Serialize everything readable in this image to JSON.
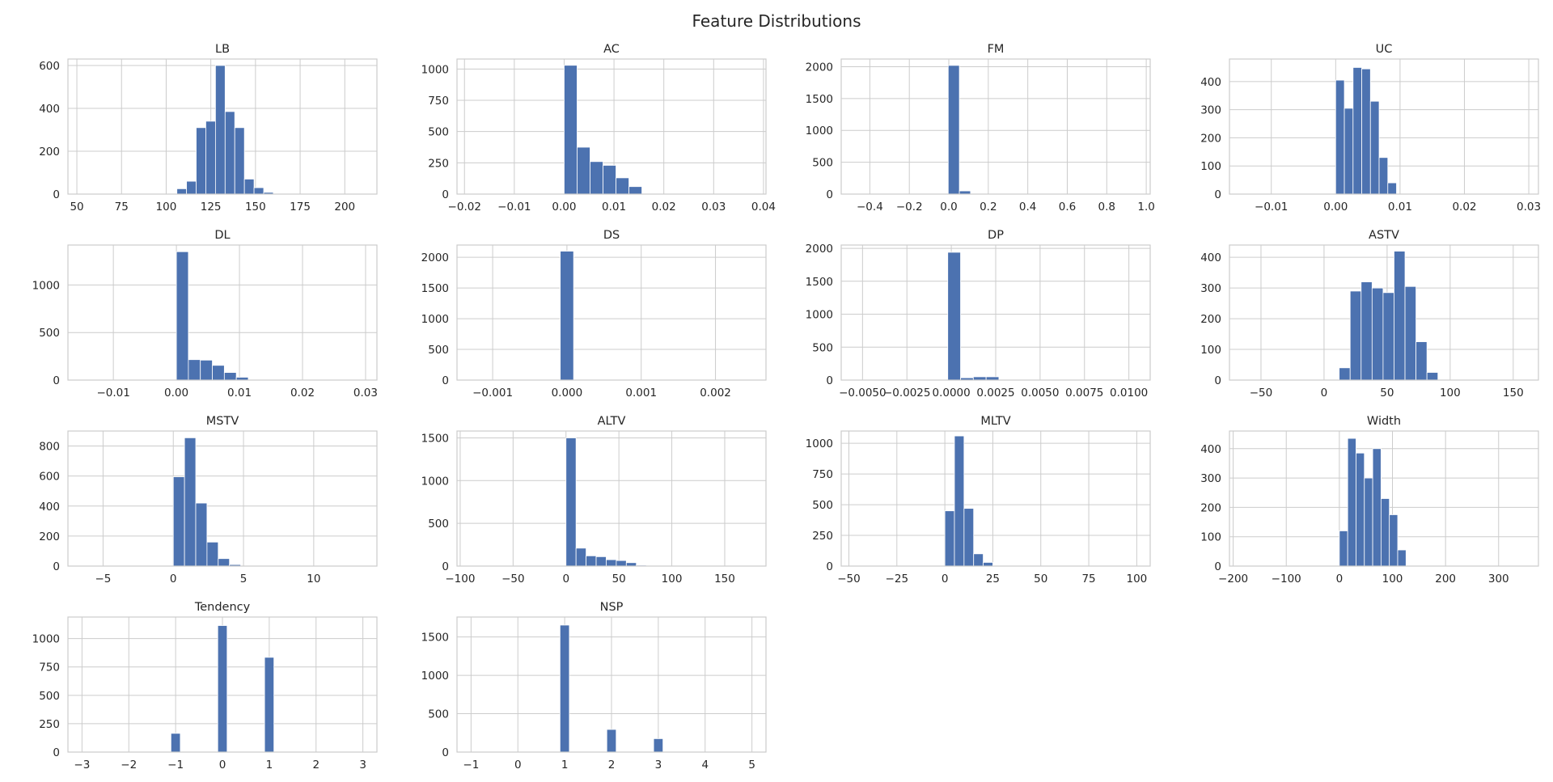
{
  "figure": {
    "title": "Feature Distributions"
  },
  "style": {
    "bar_color": "#4c72b0",
    "grid_color": "#cccccc",
    "background": "#ffffff"
  },
  "chart_data": [
    {
      "type": "bar",
      "title": "LB",
      "xlim": [
        45,
        218
      ],
      "ylim": [
        0,
        630
      ],
      "grid": true,
      "xticks": [
        50,
        75,
        100,
        125,
        150,
        175,
        200
      ],
      "yticks": [
        0,
        200,
        400,
        600
      ],
      "bin_edges": [
        106,
        111.4,
        116.8,
        122.2,
        127.6,
        133,
        138.4,
        143.8,
        149.2,
        154.6,
        160
      ],
      "values": [
        25,
        60,
        310,
        340,
        600,
        385,
        310,
        70,
        30,
        8
      ]
    },
    {
      "type": "bar",
      "title": "AC",
      "xlim": [
        -0.0215,
        0.0405
      ],
      "ylim": [
        0,
        1080
      ],
      "grid": true,
      "xticks": [
        -0.02,
        -0.01,
        0.0,
        0.01,
        0.02,
        0.03,
        0.04
      ],
      "xtick_labels": [
        "−0.02",
        "−0.01",
        "0.00",
        "0.01",
        "0.02",
        "0.03",
        "0.04"
      ],
      "yticks": [
        0,
        250,
        500,
        750,
        1000
      ],
      "bin_edges": [
        0,
        0.0026,
        0.0052,
        0.0078,
        0.0104,
        0.013,
        0.0156
      ],
      "values": [
        1030,
        375,
        260,
        230,
        130,
        60
      ]
    },
    {
      "type": "bar",
      "title": "FM",
      "xlim": [
        -0.545,
        1.02
      ],
      "ylim": [
        0,
        2120
      ],
      "grid": true,
      "xticks": [
        -0.4,
        -0.2,
        0.0,
        0.2,
        0.4,
        0.6,
        0.8,
        1.0
      ],
      "xtick_labels": [
        "−0.4",
        "−0.2",
        "0.0",
        "0.2",
        "0.4",
        "0.6",
        "0.8",
        "1.0"
      ],
      "yticks": [
        0,
        500,
        1000,
        1500,
        2000
      ],
      "bin_edges": [
        -0.003,
        0.0535,
        0.11
      ],
      "values": [
        2020,
        50
      ]
    },
    {
      "type": "bar",
      "title": "UC",
      "xlim": [
        -0.0165,
        0.0315
      ],
      "ylim": [
        0,
        480
      ],
      "grid": true,
      "xticks": [
        -0.01,
        0.0,
        0.01,
        0.02,
        0.03
      ],
      "xtick_labels": [
        "−0.01",
        "0.00",
        "0.01",
        "0.02",
        "0.03"
      ],
      "yticks": [
        0,
        100,
        200,
        300,
        400
      ],
      "bin_edges": [
        0,
        0.00135,
        0.0027,
        0.00405,
        0.0054,
        0.00675,
        0.0081,
        0.00945,
        0.0108
      ],
      "values": [
        405,
        305,
        450,
        445,
        330,
        130,
        40,
        0
      ]
    },
    {
      "type": "bar",
      "title": "DL",
      "xlim": [
        -0.0172,
        0.0318
      ],
      "ylim": [
        0,
        1420
      ],
      "grid": true,
      "xticks": [
        -0.01,
        0.0,
        0.01,
        0.02,
        0.03
      ],
      "xtick_labels": [
        "−0.01",
        "0.00",
        "0.01",
        "0.02",
        "0.03"
      ],
      "yticks": [
        0,
        500,
        1000
      ],
      "bin_edges": [
        0,
        0.0019,
        0.0038,
        0.0057,
        0.0076,
        0.0095,
        0.0114,
        0.0133
      ],
      "values": [
        1350,
        215,
        210,
        155,
        80,
        30,
        5
      ]
    },
    {
      "type": "bar",
      "title": "DS",
      "xlim": [
        -0.00148,
        0.00268
      ],
      "ylim": [
        0,
        2200
      ],
      "grid": true,
      "xticks": [
        -0.001,
        0.0,
        0.001,
        0.002
      ],
      "xtick_labels": [
        "−0.001",
        "0.000",
        "0.001",
        "0.002"
      ],
      "yticks": [
        0,
        500,
        1000,
        1500,
        2000
      ],
      "bin_edges": [
        -9e-05,
        9e-05
      ],
      "values": [
        2100
      ]
    },
    {
      "type": "bar",
      "title": "DP",
      "xlim": [
        -0.0062,
        0.0112
      ],
      "ylim": [
        0,
        2050
      ],
      "grid": true,
      "xticks": [
        -0.005,
        -0.0025,
        0.0,
        0.0025,
        0.005,
        0.0075,
        0.01
      ],
      "xtick_labels": [
        "−0.0050",
        "−0.0025",
        "0.0000",
        "0.0025",
        "0.0050",
        "0.0075",
        "0.0100"
      ],
      "yticks": [
        0,
        500,
        1000,
        1500,
        2000
      ],
      "bin_edges": [
        -0.0002,
        0.00052,
        0.00124,
        0.00196,
        0.00268
      ],
      "values": [
        1940,
        35,
        50,
        50
      ]
    },
    {
      "type": "bar",
      "title": "ASTV",
      "xlim": [
        -75,
        170
      ],
      "ylim": [
        0,
        440
      ],
      "grid": true,
      "xticks": [
        -50,
        0,
        50,
        100,
        150
      ],
      "xtick_labels": [
        "−50",
        "0",
        "50",
        "100",
        "150"
      ],
      "yticks": [
        0,
        100,
        200,
        300,
        400
      ],
      "bin_edges": [
        12,
        20.7,
        29.4,
        38.1,
        46.8,
        55.5,
        64.2,
        72.9,
        81.6,
        90.3
      ],
      "values": [
        40,
        290,
        320,
        300,
        285,
        420,
        305,
        125,
        25
      ]
    },
    {
      "type": "bar",
      "title": "MSTV",
      "xlim": [
        -7.5,
        14.5
      ],
      "ylim": [
        0,
        900
      ],
      "grid": true,
      "xticks": [
        -5,
        0,
        5,
        10
      ],
      "xtick_labels": [
        "−5",
        "0",
        "5",
        "10"
      ],
      "yticks": [
        0,
        200,
        400,
        600,
        800
      ],
      "bin_edges": [
        0,
        0.8,
        1.6,
        2.4,
        3.2,
        4.0,
        4.8
      ],
      "values": [
        595,
        855,
        420,
        160,
        50,
        10
      ]
    },
    {
      "type": "bar",
      "title": "ALTV",
      "xlim": [
        -103,
        189
      ],
      "ylim": [
        0,
        1580
      ],
      "grid": true,
      "xticks": [
        -100,
        -50,
        0,
        50,
        100,
        150
      ],
      "xtick_labels": [
        "−100",
        "−50",
        "0",
        "50",
        "100",
        "150"
      ],
      "yticks": [
        0,
        500,
        1000,
        1500
      ],
      "bin_edges": [
        0,
        9.5,
        19,
        28.5,
        38,
        47.5,
        57,
        66.5,
        76
      ],
      "values": [
        1500,
        210,
        120,
        110,
        75,
        65,
        40,
        10
      ]
    },
    {
      "type": "bar",
      "title": "MLTV",
      "xlim": [
        -54,
        107
      ],
      "ylim": [
        0,
        1100
      ],
      "grid": true,
      "xticks": [
        -50,
        -25,
        0,
        25,
        50,
        75,
        100
      ],
      "xtick_labels": [
        "−50",
        "−25",
        "0",
        "25",
        "50",
        "75",
        "100"
      ],
      "yticks": [
        0,
        250,
        500,
        750,
        1000
      ],
      "bin_edges": [
        0,
        5,
        10,
        15,
        20,
        25,
        30
      ],
      "values": [
        450,
        1060,
        470,
        100,
        30,
        5
      ]
    },
    {
      "type": "bar",
      "title": "Width",
      "xlim": [
        -207,
        375
      ],
      "ylim": [
        0,
        460
      ],
      "grid": true,
      "xticks": [
        -200,
        -100,
        0,
        100,
        200,
        300
      ],
      "xtick_labels": [
        "−200",
        "−100",
        "0",
        "100",
        "200",
        "300"
      ],
      "yticks": [
        0,
        100,
        200,
        300,
        400
      ],
      "bin_edges": [
        0,
        15.7,
        31.4,
        47.1,
        62.8,
        78.5,
        94.2,
        109.9,
        125.6,
        141.3,
        157
      ],
      "values": [
        120,
        435,
        385,
        300,
        400,
        230,
        175,
        55,
        0,
        0
      ]
    },
    {
      "type": "bar",
      "title": "Tendency",
      "xlim": [
        -3.3,
        3.3
      ],
      "ylim": [
        0,
        1190
      ],
      "grid": true,
      "xticks": [
        -3,
        -2,
        -1,
        0,
        1,
        2,
        3
      ],
      "xtick_labels": [
        "−3",
        "−2",
        "−1",
        "0",
        "1",
        "2",
        "3"
      ],
      "yticks": [
        0,
        250,
        500,
        750,
        1000
      ],
      "bin_edges": [
        -1.1,
        -0.9,
        -0.1,
        0.1,
        0.9,
        1.1
      ],
      "values": [
        165,
        0,
        1115,
        0,
        835
      ]
    },
    {
      "type": "bar",
      "title": "NSP",
      "xlim": [
        -1.3,
        5.3
      ],
      "ylim": [
        0,
        1760
      ],
      "grid": true,
      "xticks": [
        -1,
        0,
        1,
        2,
        3,
        4,
        5
      ],
      "xtick_labels": [
        "−1",
        "0",
        "1",
        "2",
        "3",
        "4",
        "5"
      ],
      "yticks": [
        0,
        500,
        1000,
        1500
      ],
      "bin_edges": [
        0.9,
        1.1,
        1.9,
        2.1,
        2.9,
        3.1
      ],
      "values": [
        1655,
        0,
        295,
        0,
        175
      ]
    }
  ]
}
